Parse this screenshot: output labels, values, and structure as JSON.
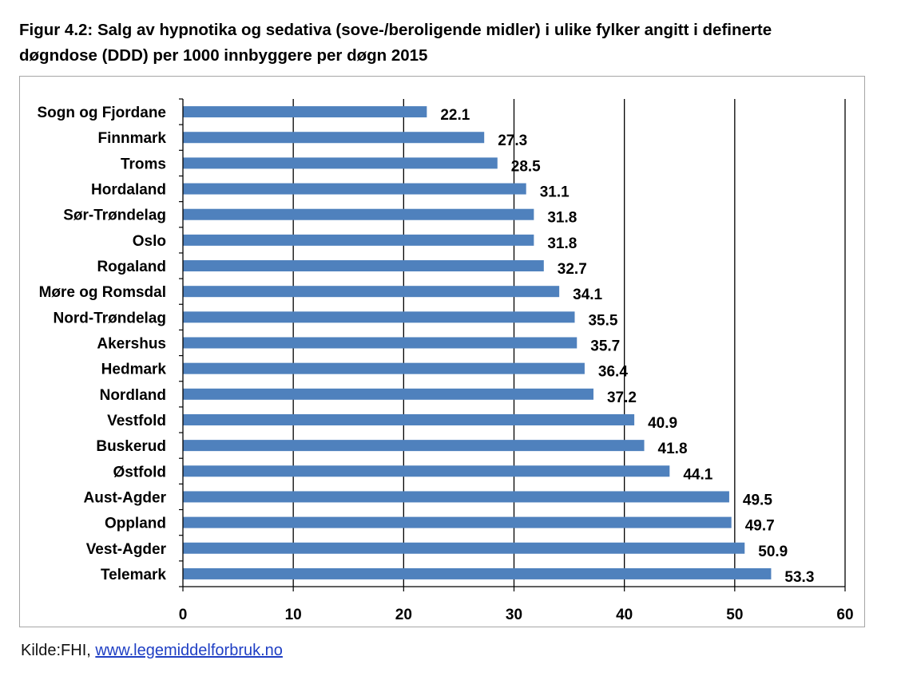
{
  "page": {
    "title_line1": "Figur 4.2: Salg av hypnotika og sedativa (sove-/beroligende midler) i ulike fylker angitt i definerte",
    "title_line2": "døgndose (DDD) per 1000 innbyggere per døgn 2015",
    "source_prefix": "Kilde:FHI, ",
    "source_link": "www.legemiddelforbruk.no"
  },
  "chart_data": {
    "type": "bar",
    "orientation": "horizontal",
    "title": "Figur 4.2: Salg av hypnotika og sedativa (sove-/beroligende midler) i ulike fylker angitt i definerte døgndose (DDD) per 1000 innbyggere per døgn 2015",
    "xlabel": "",
    "ylabel": "",
    "xlim": [
      0,
      60
    ],
    "xticks": [
      0,
      10,
      20,
      30,
      40,
      50,
      60
    ],
    "grid": "vertical",
    "legend": "none",
    "bar_color": "#4f81bd",
    "categories": [
      "Sogn og Fjordane",
      "Finnmark",
      "Troms",
      "Hordaland",
      "Sør-Trøndelag",
      "Oslo",
      "Rogaland",
      "Møre og Romsdal",
      "Nord-Trøndelag",
      "Akershus",
      "Hedmark",
      "Nordland",
      "Vestfold",
      "Buskerud",
      "Østfold",
      "Aust-Agder",
      "Oppland",
      "Vest-Agder",
      "Telemark"
    ],
    "values": [
      22.1,
      27.3,
      28.5,
      31.1,
      31.8,
      31.8,
      32.7,
      34.1,
      35.5,
      35.7,
      36.4,
      37.2,
      40.9,
      41.8,
      44.1,
      49.5,
      49.7,
      50.9,
      53.3
    ],
    "data_labels": [
      "22.1",
      "27.3",
      "28.5",
      "31.1",
      "31.8",
      "31.8",
      "32.7",
      "34.1",
      "35.5",
      "35.7",
      "36.4",
      "37.2",
      "40.9",
      "41.8",
      "44.1",
      "49.5",
      "49.7",
      "50.9",
      "53.3"
    ]
  }
}
